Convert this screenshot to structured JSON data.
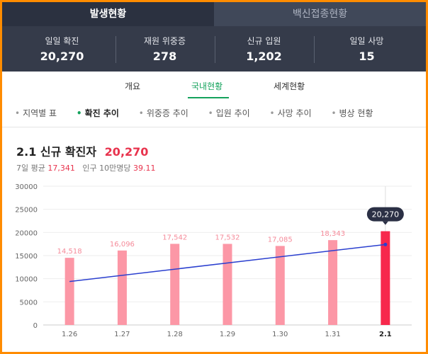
{
  "tabs": [
    {
      "label": "발생현황",
      "active": true
    },
    {
      "label": "백신접종현황",
      "active": false
    }
  ],
  "stats": [
    {
      "label": "일일 확진",
      "value": "20,270"
    },
    {
      "label": "재원 위중증",
      "value": "278"
    },
    {
      "label": "신규 입원",
      "value": "1,202"
    },
    {
      "label": "일일 사망",
      "value": "15"
    }
  ],
  "subtabs": [
    {
      "label": "개요",
      "active": false
    },
    {
      "label": "국내현황",
      "active": true
    },
    {
      "label": "세계현황",
      "active": false
    }
  ],
  "subnav": [
    {
      "label": "지역별 표",
      "active": false
    },
    {
      "label": "확진 추이",
      "active": true
    },
    {
      "label": "위중증 추이",
      "active": false
    },
    {
      "label": "입원 추이",
      "active": false
    },
    {
      "label": "사망 추이",
      "active": false
    },
    {
      "label": "병상 현황",
      "active": false
    }
  ],
  "chart_header": {
    "date": "2.1",
    "title": "신규 확진자",
    "value": "20,270",
    "avg_label": "7일 평균",
    "avg_value": "17,341",
    "per_label": "인구 10만명당",
    "per_value": "39.11"
  },
  "colors": {
    "accent": "#14a25c",
    "bar": "#fc97a6",
    "bar_highlight": "#f7284c",
    "line": "#2a3fcf",
    "dark_bg": "#353b4a"
  },
  "chart_data": {
    "type": "bar",
    "categories": [
      "1.26",
      "1.27",
      "1.28",
      "1.29",
      "1.30",
      "1.31",
      "2.1"
    ],
    "values": [
      14518,
      16096,
      17542,
      17532,
      17085,
      18343,
      20270
    ],
    "value_labels": [
      "14,518",
      "16,096",
      "17,542",
      "17,532",
      "17,085",
      "18,343",
      "20,270"
    ],
    "yticks": [
      "0",
      "5000",
      "10000",
      "15000",
      "20000",
      "25000",
      "30000"
    ],
    "ylim": [
      0,
      30000
    ],
    "trend_line": {
      "start": 9400,
      "end": 17400
    },
    "highlight_index": 6,
    "tooltip": "20,270",
    "grid": true
  }
}
